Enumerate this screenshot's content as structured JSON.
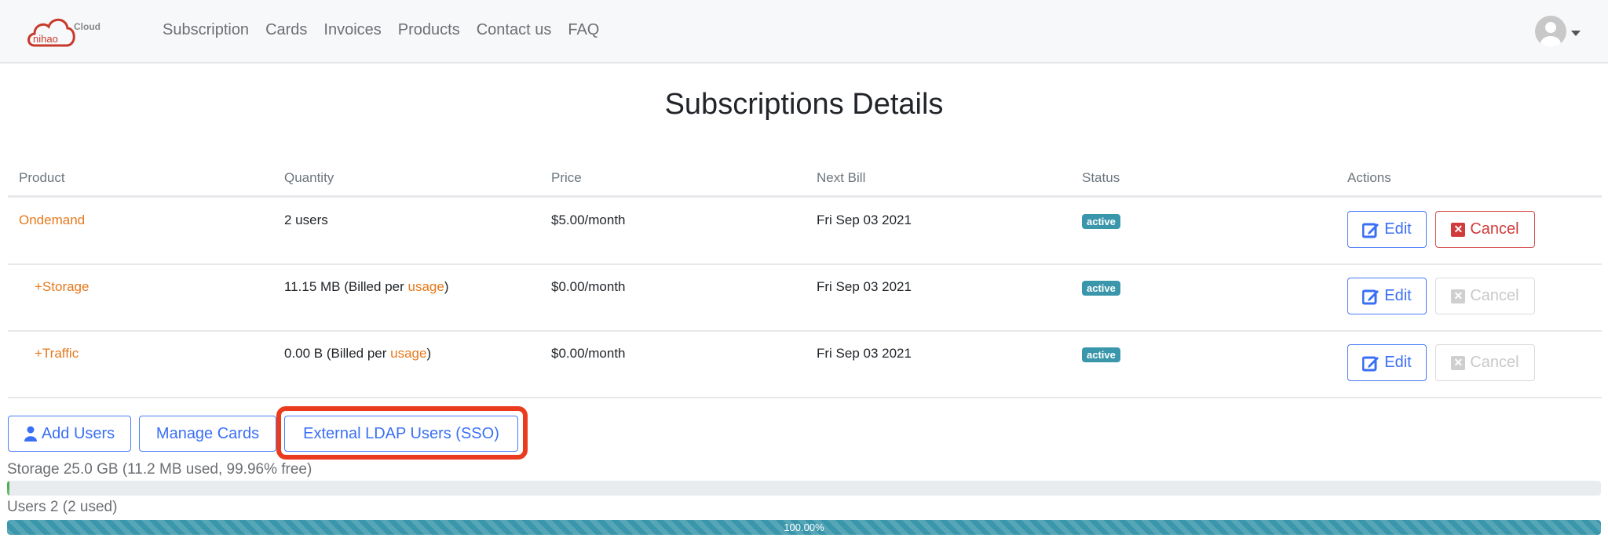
{
  "brand": {
    "logo_text": "nihao",
    "logo_sub": "Cloud"
  },
  "nav": [
    "Subscription",
    "Cards",
    "Invoices",
    "Products",
    "Contact us",
    "FAQ"
  ],
  "title": "Subscriptions Details",
  "columns": [
    "Product",
    "Quantity",
    "Price",
    "Next Bill",
    "Status",
    "Actions"
  ],
  "rows": [
    {
      "product": "Ondemand",
      "quantity": "2 users",
      "quantity_link": "",
      "quantity_suffix": "",
      "price": "$5.00/month",
      "next_bill": "Fri Sep 03 2021",
      "status": "active",
      "edit": "Edit",
      "cancel": "Cancel",
      "cancel_enabled": true
    },
    {
      "product": "+Storage",
      "quantity": "11.15 MB (Billed per ",
      "quantity_link": "usage",
      "quantity_suffix": ")",
      "price": "$0.00/month",
      "next_bill": "Fri Sep 03 2021",
      "status": "active",
      "edit": "Edit",
      "cancel": "Cancel",
      "cancel_enabled": false
    },
    {
      "product": "+Traffic",
      "quantity": "0.00 B (Billed per ",
      "quantity_link": "usage",
      "quantity_suffix": ")",
      "price": "$0.00/month",
      "next_bill": "Fri Sep 03 2021",
      "status": "active",
      "edit": "Edit",
      "cancel": "Cancel",
      "cancel_enabled": false
    }
  ],
  "actions": {
    "add_users": "Add Users",
    "manage_cards": "Manage Cards",
    "ldap": "External LDAP Users (SSO)"
  },
  "storage": {
    "label": "Storage 25.0 GB (11.2 MB used, 99.96% free)",
    "used_percent": 0.04
  },
  "users": {
    "label": "Users 2 (2 used)",
    "used_percent": 100,
    "bar_text": "100.00%"
  }
}
